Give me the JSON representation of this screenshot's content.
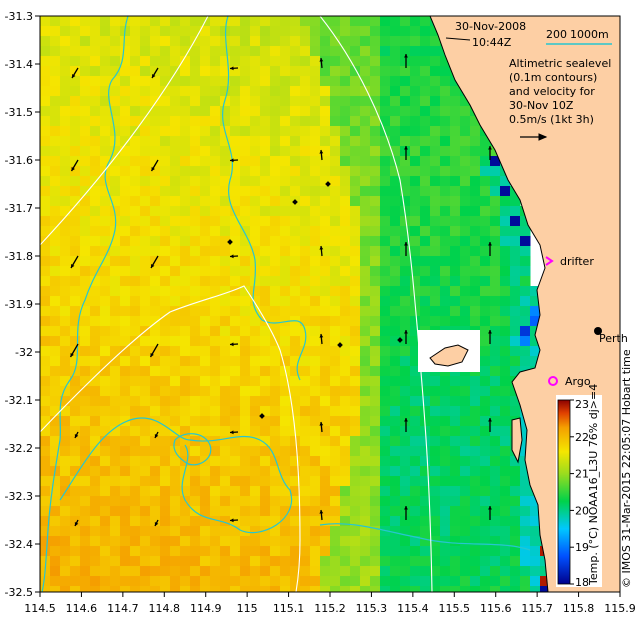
{
  "map": {
    "datetime_line1": "30-Nov-2008",
    "datetime_line2": "10:44Z",
    "scale_bar": {
      "label_200": "200",
      "label_1000": "1000m"
    },
    "legend_lines": [
      "Altimetric sealevel",
      "(0.1m contours)",
      "and velocity for",
      "30-Nov 10Z",
      "0.5m/s (1kt 3h)"
    ],
    "labels": {
      "drifter": "drifter",
      "argo": "Argo",
      "city": "Perth"
    },
    "colorbar": {
      "title": "Temp. (°C) NOAA16_L3U 76% dj>=4",
      "ticks": [
        "18",
        "19",
        "20",
        "21",
        "22",
        "23"
      ],
      "min": 18,
      "max": 23
    },
    "credit": "© IMOS 31-Mar-2015 22:05:07 Hobart time",
    "x_ticks": [
      "114.5",
      "114.6",
      "114.7",
      "114.8",
      "114.9",
      "115",
      "115.1",
      "115.2",
      "115.3",
      "115.4",
      "115.5",
      "115.6",
      "115.7",
      "115.8",
      "115.9"
    ],
    "y_ticks": [
      "-31.3",
      "-31.4",
      "-31.5",
      "-31.6",
      "-31.7",
      "-31.8",
      "-31.9",
      "-32",
      "-32.1",
      "-32.2",
      "-32.3",
      "-32.4",
      "-32.5"
    ],
    "colors": {
      "land": "#fdcfa4",
      "contour": "#26c6d0",
      "bathymetry": "#ffffff",
      "drifter_marker": "#ff00ff",
      "argo_marker": "#ff00ff"
    }
  }
}
